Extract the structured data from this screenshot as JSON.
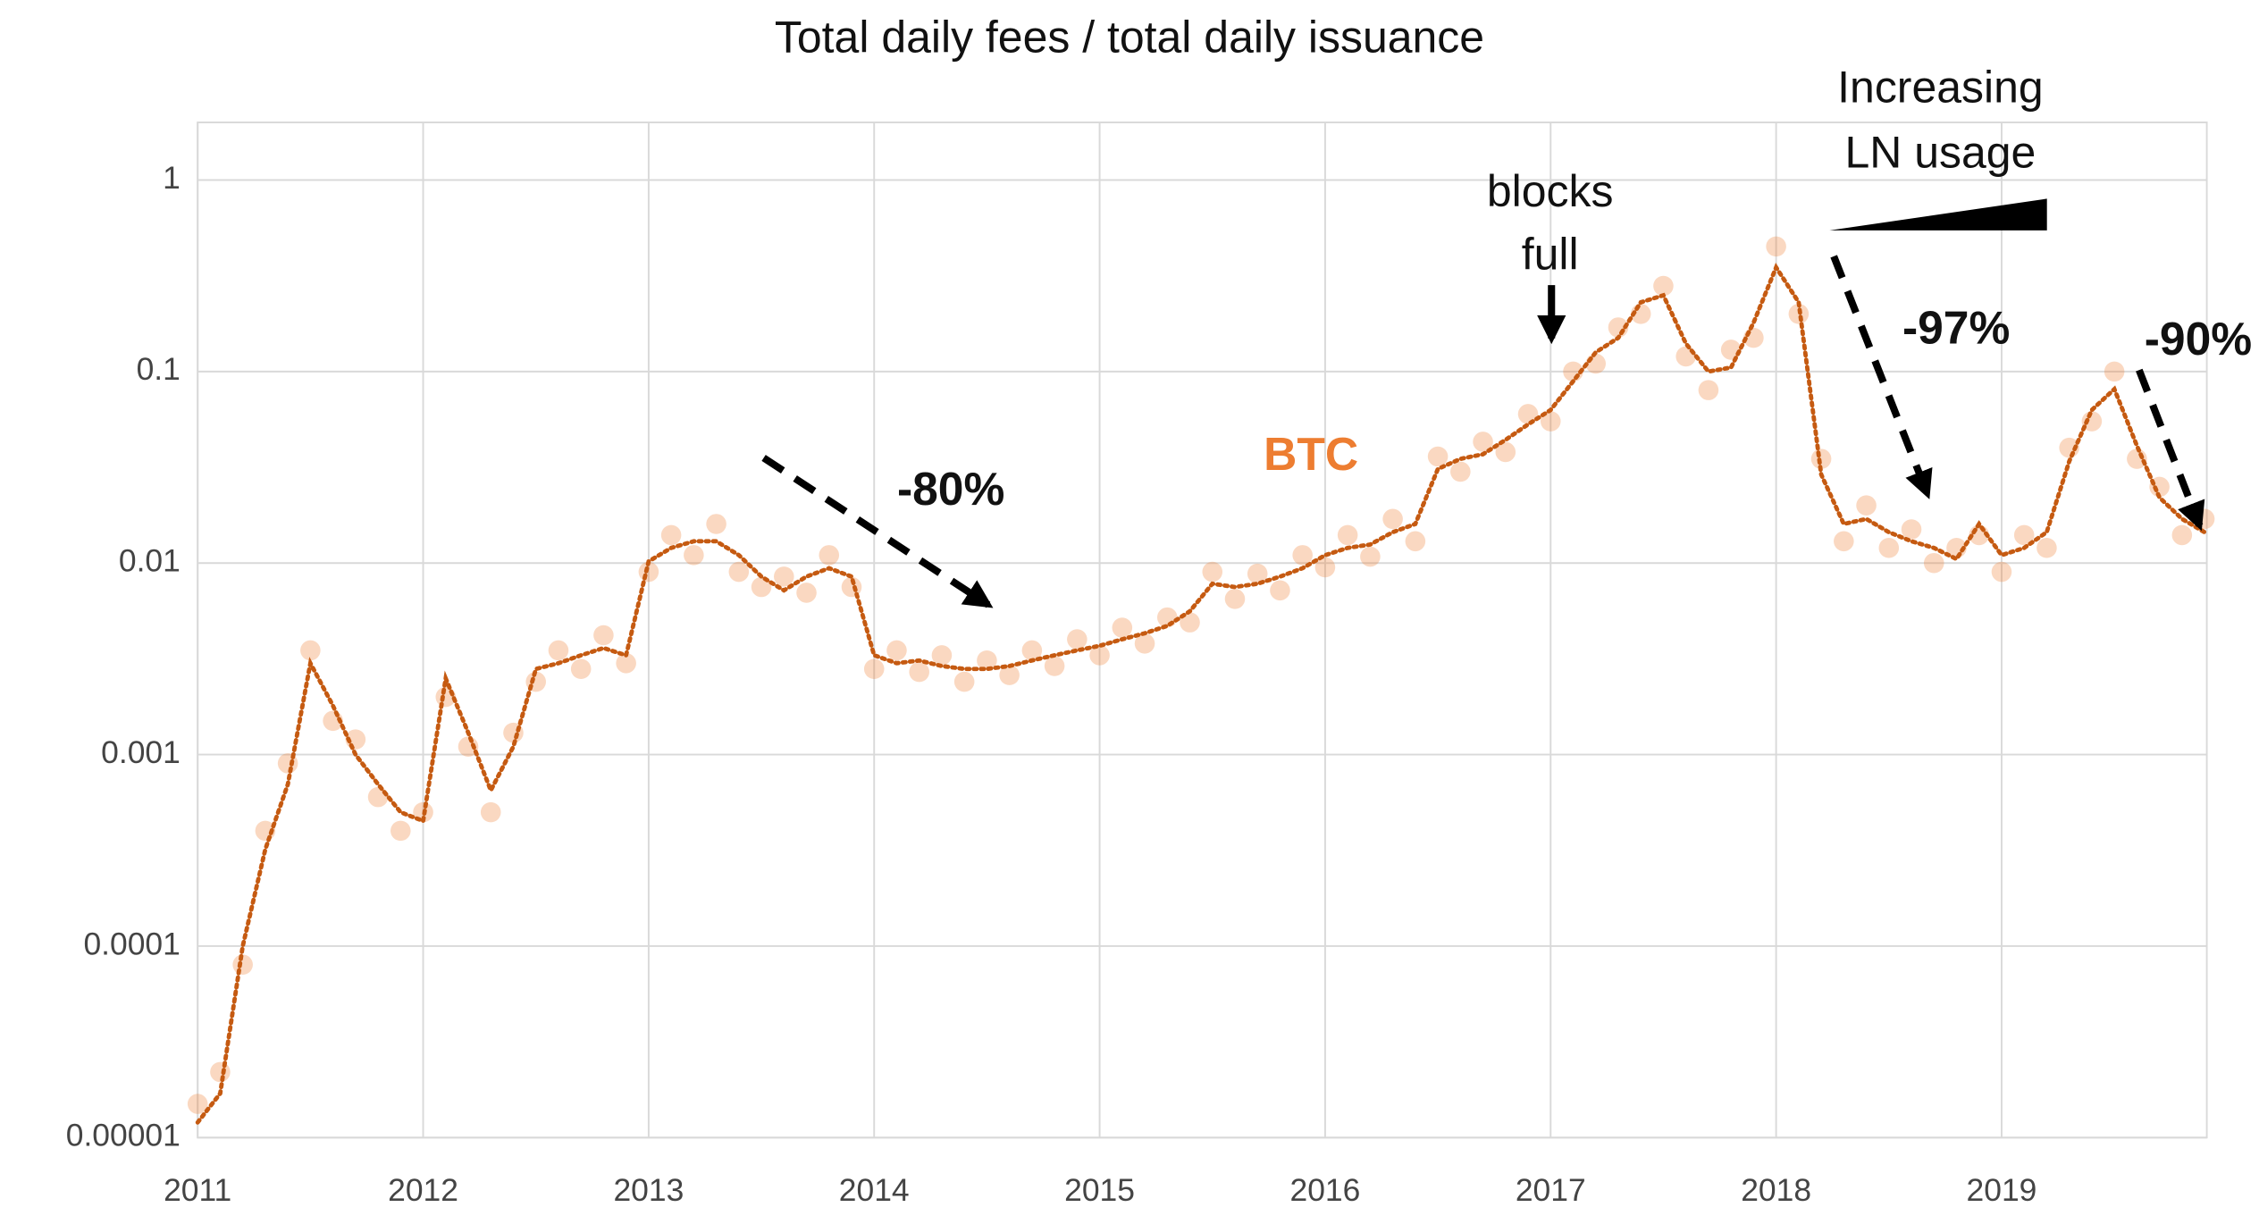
{
  "chart_data": {
    "type": "scatter",
    "title": "Total daily fees / total daily issuance",
    "log_scale_y": true,
    "grid": true,
    "xlim": [
      2011,
      2019.91
    ],
    "xticks": [
      2011,
      2012,
      2013,
      2014,
      2015,
      2016,
      2017,
      2018,
      2019
    ],
    "ylim": [
      1e-05,
      2
    ],
    "yticks": [
      1e-05,
      0.0001,
      0.001,
      0.01,
      0.1,
      1
    ],
    "x": [
      2011.0,
      2011.1,
      2011.2,
      2011.3,
      2011.4,
      2011.5,
      2011.6,
      2011.7,
      2011.8,
      2011.9,
      2012.0,
      2012.1,
      2012.2,
      2012.3,
      2012.4,
      2012.5,
      2012.6,
      2012.7,
      2012.8,
      2012.9,
      2013.0,
      2013.1,
      2013.2,
      2013.3,
      2013.4,
      2013.5,
      2013.6,
      2013.7,
      2013.8,
      2013.9,
      2014.0,
      2014.1,
      2014.2,
      2014.3,
      2014.4,
      2014.5,
      2014.6,
      2014.7,
      2014.8,
      2014.9,
      2015.0,
      2015.1,
      2015.2,
      2015.3,
      2015.4,
      2015.5,
      2015.6,
      2015.7,
      2015.8,
      2015.9,
      2016.0,
      2016.1,
      2016.2,
      2016.3,
      2016.4,
      2016.5,
      2016.6,
      2016.7,
      2016.8,
      2016.9,
      2017.0,
      2017.1,
      2017.2,
      2017.3,
      2017.4,
      2017.5,
      2017.6,
      2017.7,
      2017.8,
      2017.9,
      2018.0,
      2018.1,
      2018.2,
      2018.3,
      2018.4,
      2018.5,
      2018.6,
      2018.7,
      2018.8,
      2018.9,
      2019.0,
      2019.1,
      2019.2,
      2019.3,
      2019.4,
      2019.5,
      2019.6,
      2019.7,
      2019.8,
      2019.9
    ],
    "series": [
      {
        "name": "BTC",
        "color": "#ED7D31",
        "values": [
          1.5e-05,
          2.2e-05,
          8e-05,
          0.0004,
          0.0009,
          0.0035,
          0.0015,
          0.0012,
          0.0006,
          0.0004,
          0.0005,
          0.002,
          0.0011,
          0.0005,
          0.0013,
          0.0024,
          0.0035,
          0.0028,
          0.0042,
          0.003,
          0.009,
          0.014,
          0.011,
          0.016,
          0.009,
          0.0075,
          0.0085,
          0.007,
          0.011,
          0.0075,
          0.0028,
          0.0035,
          0.0027,
          0.0033,
          0.0024,
          0.0031,
          0.0026,
          0.0035,
          0.0029,
          0.004,
          0.0033,
          0.0046,
          0.0038,
          0.0052,
          0.0049,
          0.009,
          0.0065,
          0.0088,
          0.0072,
          0.011,
          0.0095,
          0.014,
          0.0108,
          0.017,
          0.013,
          0.036,
          0.03,
          0.043,
          0.038,
          0.06,
          0.055,
          0.1,
          0.11,
          0.17,
          0.2,
          0.28,
          0.12,
          0.08,
          0.13,
          0.15,
          0.45,
          0.2,
          0.035,
          0.013,
          0.02,
          0.012,
          0.015,
          0.01,
          0.012,
          0.014,
          0.009,
          0.014,
          0.012,
          0.04,
          0.055,
          0.1,
          0.035,
          0.025,
          0.014,
          0.017
        ]
      }
    ],
    "trendline": {
      "color": "#C55A11",
      "values": [
        1.2e-05,
        1.7e-05,
        0.0001,
        0.00032,
        0.0007,
        0.003,
        0.0018,
        0.001,
        0.0007,
        0.0005,
        0.00045,
        0.0025,
        0.0013,
        0.00065,
        0.0011,
        0.0028,
        0.003,
        0.0033,
        0.0036,
        0.0033,
        0.0102,
        0.012,
        0.013,
        0.013,
        0.011,
        0.0085,
        0.0072,
        0.0085,
        0.0094,
        0.0085,
        0.0033,
        0.003,
        0.0031,
        0.0029,
        0.0028,
        0.0028,
        0.0029,
        0.0031,
        0.0033,
        0.0035,
        0.0037,
        0.004,
        0.0043,
        0.0047,
        0.0056,
        0.0078,
        0.0075,
        0.0078,
        0.0085,
        0.0094,
        0.011,
        0.012,
        0.0125,
        0.0145,
        0.016,
        0.031,
        0.035,
        0.037,
        0.044,
        0.053,
        0.063,
        0.089,
        0.126,
        0.15,
        0.23,
        0.25,
        0.14,
        0.1,
        0.105,
        0.18,
        0.35,
        0.23,
        0.029,
        0.016,
        0.017,
        0.0145,
        0.013,
        0.012,
        0.0105,
        0.016,
        0.011,
        0.012,
        0.0145,
        0.034,
        0.063,
        0.081,
        0.041,
        0.022,
        0.017,
        0.0145
      ]
    },
    "annotations": {
      "series_label": "BTC",
      "drop_2014": "-80%",
      "blocks_full": [
        "blocks",
        "full"
      ],
      "ln_usage": [
        "Increasing",
        "LN usage"
      ],
      "drop_2018": "-97%",
      "drop_2019": "-90%"
    }
  }
}
